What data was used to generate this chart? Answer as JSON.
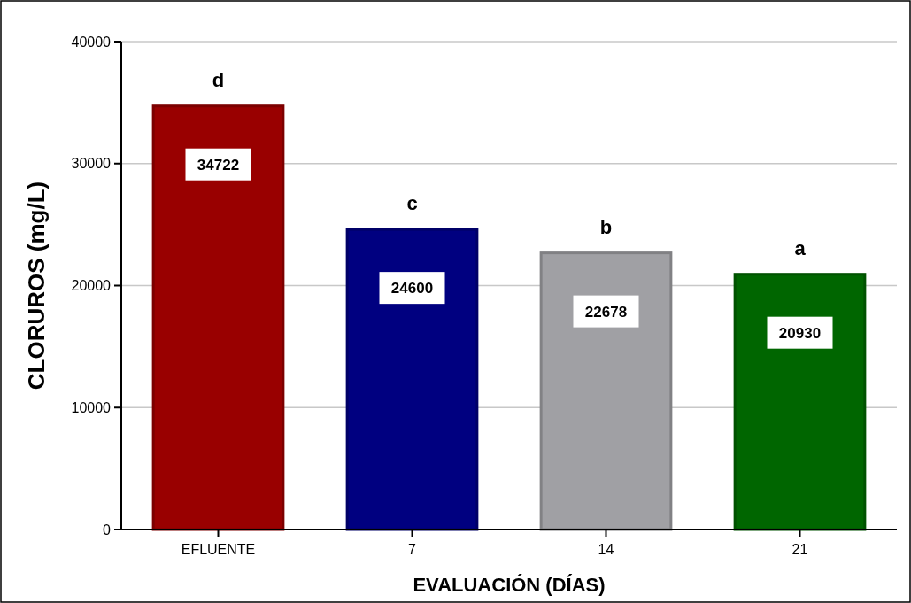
{
  "chart_data": {
    "type": "bar",
    "ylabel": "CLORUROS (mg/L)",
    "xlabel": "EVALUACIÓN (DÍAS)",
    "categories": [
      "EFLUENTE",
      "7",
      "14",
      "21"
    ],
    "values": [
      34722,
      24600,
      22678,
      20930
    ],
    "colors": [
      "#990000",
      "#000080",
      "#a0a0a4",
      "#006600"
    ],
    "ylim": [
      0,
      40000
    ],
    "yticks": [
      0,
      10000,
      20000,
      30000,
      40000
    ],
    "grid": "y",
    "data_labels": true,
    "annotations": [
      {
        "text": "d",
        "x": "EFLUENTE",
        "y": 34722
      },
      {
        "text": "c",
        "x": "7",
        "y": 24600
      },
      {
        "text": "b",
        "x": "14",
        "y": 22678
      },
      {
        "text": "a",
        "x": "21",
        "y": 20930
      }
    ]
  }
}
